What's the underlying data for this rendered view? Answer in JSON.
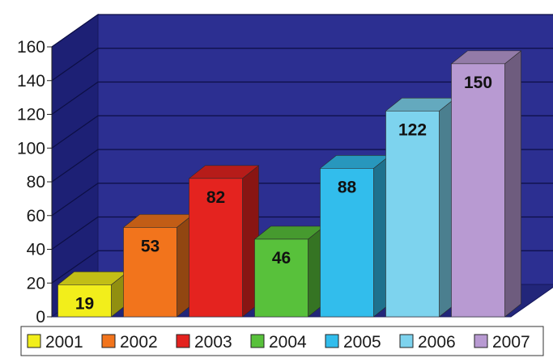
{
  "chart_data": {
    "type": "bar",
    "three_d": true,
    "categories": [
      "2001",
      "2002",
      "2003",
      "2004",
      "2005",
      "2006",
      "2007"
    ],
    "values": [
      19,
      53,
      82,
      46,
      88,
      122,
      150
    ],
    "colors": [
      "#f2ee1b",
      "#f2741c",
      "#e4231f",
      "#58c13b",
      "#32bdec",
      "#7dd3ee",
      "#b89ad2"
    ],
    "data_labels": [
      "19",
      "53",
      "82",
      "46",
      "88",
      "122",
      "150"
    ],
    "ylim": [
      0,
      160
    ],
    "yticks": [
      "0",
      "20",
      "40",
      "60",
      "80",
      "100",
      "120",
      "140",
      "160"
    ],
    "grid": true,
    "legend_position": "bottom",
    "background": {
      "wall": "#2c2f91",
      "floor": "#22267a",
      "grid": "#0d0f45"
    }
  }
}
